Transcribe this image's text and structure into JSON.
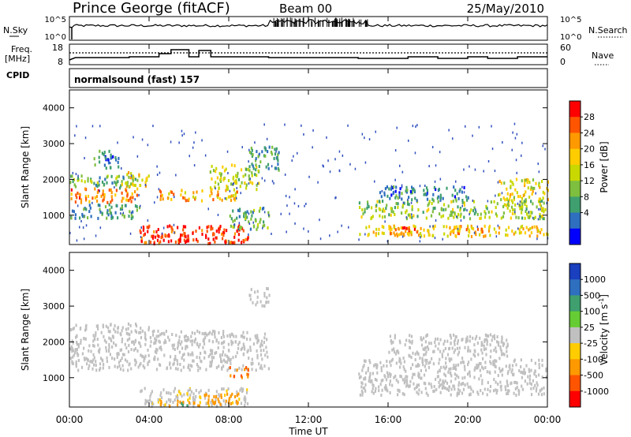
{
  "header": {
    "site": "Prince George (fitACF)",
    "beam": "Beam 00",
    "date": "25/May/2010"
  },
  "time_axis": {
    "ticks": [
      "00:00",
      "04:00",
      "08:00",
      "12:00",
      "16:00",
      "20:00",
      "00:00"
    ],
    "label": "Time UT",
    "range_hours": [
      0,
      24
    ]
  },
  "panels": {
    "nsky": {
      "left_label": "N.Sky",
      "right_label": "N.Search",
      "left_ticks": [
        "10^5",
        "10^0"
      ],
      "right_ticks": [
        "10^5",
        "10^0"
      ],
      "scale": "log"
    },
    "freq": {
      "left_label_top": "Freq.",
      "left_label_unit": "[MHz]",
      "left_ticks": [
        "18",
        "8"
      ],
      "right_ticks": [
        "60",
        "0"
      ],
      "right_label": "Nave",
      "cpid_label": "CPID"
    },
    "mode": {
      "text": "normalsound (fast) 157"
    },
    "power": {
      "ylabel": "Slant Range [km]",
      "yticks": [
        "4000",
        "3000",
        "2000",
        "1000"
      ],
      "ylim": [
        180,
        4500
      ],
      "colorbar_label": "Power [dB]",
      "colorbar_ticks": [
        "28",
        "24",
        "20",
        "16",
        "12",
        "8",
        "4"
      ],
      "colors": [
        "#ff0000",
        "#ff5500",
        "#ff9900",
        "#ffcc00",
        "#c8d800",
        "#7fbf3f",
        "#3f9f6f",
        "#2f6fbf",
        "#0000ff"
      ]
    },
    "velocity": {
      "ylabel": "Slant Range [km]",
      "yticks": [
        "4000",
        "3000",
        "2000",
        "1000"
      ],
      "ylim": [
        180,
        4500
      ],
      "colorbar_label": "Velocity [m s",
      "colorbar_label_sup": "-1",
      "colorbar_label_end": "]",
      "colorbar_ticks": [
        "1000",
        "500",
        "100",
        "25",
        "-25",
        "-100",
        "-500",
        "-1000"
      ],
      "colors": [
        "#1a3fbf",
        "#2f6fbf",
        "#3f9f6f",
        "#66cc33",
        "#c0c0c0",
        "#ffcc00",
        "#ff9900",
        "#ff5500",
        "#ff0000"
      ]
    }
  },
  "chart_data": {
    "type": "heatmap",
    "title": "Prince George (fitACF)   Beam 00   25/May/2010",
    "xlabel": "Time UT",
    "ylabel": "Slant Range [km]",
    "xlim": [
      0,
      24
    ],
    "ylim": [
      180,
      4500
    ],
    "grid": false,
    "power_regions": [
      {
        "t": [
          0.0,
          3.5
        ],
        "r": [
          1350,
          1750
        ],
        "db": 22
      },
      {
        "t": [
          0.0,
          3.5
        ],
        "r": [
          1750,
          2100
        ],
        "db": 10
      },
      {
        "t": [
          0.0,
          3.5
        ],
        "r": [
          900,
          1300
        ],
        "db": 8
      },
      {
        "t": [
          1.2,
          2.5
        ],
        "r": [
          2300,
          2800
        ],
        "db": 6
      },
      {
        "t": [
          2.5,
          4.0
        ],
        "r": [
          1800,
          2200
        ],
        "db": 16
      },
      {
        "t": [
          3.5,
          9.0
        ],
        "r": [
          200,
          700
        ],
        "db": 27
      },
      {
        "t": [
          4.0,
          6.0
        ],
        "r": [
          200,
          450
        ],
        "db": 28
      },
      {
        "t": [
          4.5,
          8.5
        ],
        "r": [
          1400,
          1700
        ],
        "db": 20
      },
      {
        "t": [
          7.0,
          9.5
        ],
        "r": [
          1700,
          2400
        ],
        "db": 14
      },
      {
        "t": [
          8.0,
          10.0
        ],
        "r": [
          600,
          1200
        ],
        "db": 10
      },
      {
        "t": [
          9.0,
          10.5
        ],
        "r": [
          2200,
          2900
        ],
        "db": 8
      },
      {
        "t": [
          14.5,
          24.0
        ],
        "r": [
          900,
          1400
        ],
        "db": 12
      },
      {
        "t": [
          14.5,
          24.0
        ],
        "r": [
          400,
          700
        ],
        "db": 18
      },
      {
        "t": [
          16.0,
          17.5
        ],
        "r": [
          400,
          650
        ],
        "db": 26
      },
      {
        "t": [
          19.0,
          21.0
        ],
        "r": [
          450,
          700
        ],
        "db": 21
      },
      {
        "t": [
          21.5,
          24.0
        ],
        "r": [
          1400,
          2000
        ],
        "db": 16
      },
      {
        "t": [
          15.5,
          20.0
        ],
        "r": [
          1400,
          1800
        ],
        "db": 6
      }
    ],
    "velocity_regions": [
      {
        "t": [
          0.0,
          4.0
        ],
        "r": [
          1200,
          2500
        ],
        "v": 0
      },
      {
        "t": [
          4.0,
          10.0
        ],
        "r": [
          1200,
          2300
        ],
        "v": 0
      },
      {
        "t": [
          3.5,
          9.0
        ],
        "r": [
          200,
          700
        ],
        "v": -10
      },
      {
        "t": [
          6.5,
          8.5
        ],
        "r": [
          200,
          550
        ],
        "v": -150
      },
      {
        "t": [
          4.5,
          6.5
        ],
        "r": [
          200,
          350
        ],
        "v": -100
      },
      {
        "t": [
          5.5,
          6.0
        ],
        "r": [
          200,
          320
        ],
        "v": 80
      },
      {
        "t": [
          8.0,
          9.0
        ],
        "r": [
          1000,
          1300
        ],
        "v": -300
      },
      {
        "t": [
          14.5,
          24.0
        ],
        "r": [
          500,
          1500
        ],
        "v": 0
      },
      {
        "t": [
          16.0,
          22.0
        ],
        "r": [
          1500,
          2200
        ],
        "v": 0
      },
      {
        "t": [
          9.0,
          10.0
        ],
        "r": [
          3000,
          3500
        ],
        "v": 0
      }
    ]
  }
}
